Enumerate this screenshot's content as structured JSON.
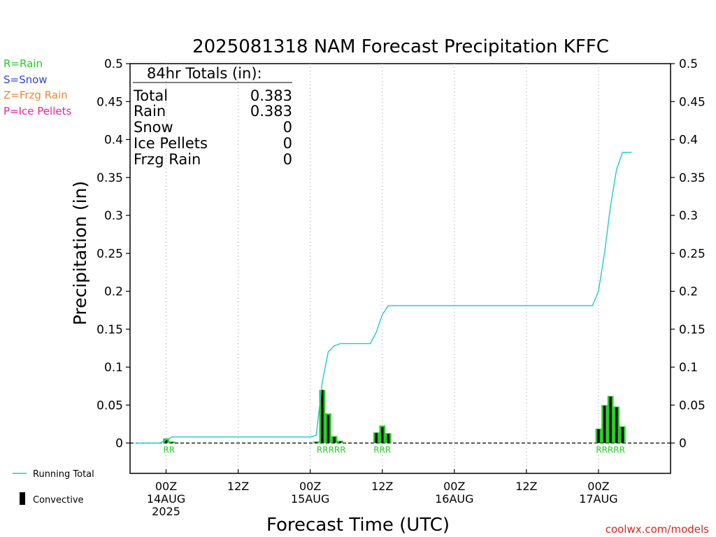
{
  "title": "2025081318 NAM Forecast Precipitation KFFC",
  "legend_types": [
    {
      "label": "R=Rain",
      "color": "#22cc22"
    },
    {
      "label": "S=Snow",
      "color": "#3344ee"
    },
    {
      "label": "Z=Frzg Rain",
      "color": "#ee8833"
    },
    {
      "label": "P=Ice Pellets",
      "color": "#ee2299"
    }
  ],
  "totals": {
    "header": "84hr Totals (in):",
    "rows": [
      {
        "label": "Total",
        "value": "0.383"
      },
      {
        "label": "Rain",
        "value": "0.383"
      },
      {
        "label": "Snow",
        "value": "0"
      },
      {
        "label": "Ice Pellets",
        "value": "0"
      },
      {
        "label": "Frzg Rain",
        "value": "0"
      }
    ]
  },
  "bottom_legend": {
    "running_total": "Running Total",
    "convective": "Convective"
  },
  "credit": "coolwx.com/models",
  "colors": {
    "running_total": "#22c8c8",
    "rain_bar": "#22cc22",
    "convective_bar": "#000000",
    "credit": "#dd2222"
  },
  "chart_data": {
    "type": "bar",
    "title": "2025081318 NAM Forecast Precipitation KFFC",
    "xlabel": "Forecast Time (UTC)",
    "ylabel": "Precipitation (in)",
    "ylim": [
      -0.04,
      0.5
    ],
    "y_ticks": [
      "0.5",
      "0.45",
      "0.4",
      "0.35",
      "0.3",
      "0.25",
      "0.2",
      "0.15",
      "0.1",
      "0.05",
      "0"
    ],
    "x_range_hours": [
      -6,
      84
    ],
    "x_ticks": [
      {
        "hour": 0,
        "lines": [
          "00Z",
          "14AUG",
          "2025"
        ]
      },
      {
        "hour": 12,
        "lines": [
          "12Z"
        ]
      },
      {
        "hour": 24,
        "lines": [
          "00Z",
          "15AUG"
        ]
      },
      {
        "hour": 36,
        "lines": [
          "12Z"
        ]
      },
      {
        "hour": 48,
        "lines": [
          "00Z",
          "16AUG"
        ]
      },
      {
        "hour": 60,
        "lines": [
          "12Z"
        ]
      },
      {
        "hour": 72,
        "lines": [
          "00Z",
          "17AUG"
        ]
      }
    ],
    "bars": [
      {
        "hour": 0,
        "total": 0.006,
        "convective": 0.004
      },
      {
        "hour": 1,
        "total": 0.002,
        "convective": 0.001
      },
      {
        "hour": 25,
        "total": 0.002,
        "convective": 0.001
      },
      {
        "hour": 26,
        "total": 0.07,
        "convective": 0.07
      },
      {
        "hour": 27,
        "total": 0.039,
        "convective": 0.037
      },
      {
        "hour": 28,
        "total": 0.009,
        "convective": 0.008
      },
      {
        "hour": 29,
        "total": 0.003,
        "convective": 0.002
      },
      {
        "hour": 35,
        "total": 0.014,
        "convective": 0.013
      },
      {
        "hour": 36,
        "total": 0.023,
        "convective": 0.021
      },
      {
        "hour": 37,
        "total": 0.013,
        "convective": 0.012
      },
      {
        "hour": 72,
        "total": 0.019,
        "convective": 0.018
      },
      {
        "hour": 73,
        "total": 0.05,
        "convective": 0.049
      },
      {
        "hour": 74,
        "total": 0.062,
        "convective": 0.061
      },
      {
        "hour": 75,
        "total": 0.048,
        "convective": 0.047
      },
      {
        "hour": 76,
        "total": 0.022,
        "convective": 0.021
      }
    ],
    "precip_type_labels": [
      {
        "hour": 0.5,
        "text": "RR"
      },
      {
        "hour": 27.5,
        "text": "RRRRR"
      },
      {
        "hour": 36,
        "text": "RRR"
      },
      {
        "hour": 74,
        "text": "RRRRR"
      }
    ],
    "series": [
      {
        "name": "Running Total",
        "points": [
          [
            -5,
            0
          ],
          [
            -1,
            0
          ],
          [
            0,
            0.004
          ],
          [
            1,
            0.008
          ],
          [
            2,
            0.008
          ],
          [
            24,
            0.008
          ],
          [
            25,
            0.01
          ],
          [
            26,
            0.08
          ],
          [
            27,
            0.12
          ],
          [
            28,
            0.128
          ],
          [
            29,
            0.131
          ],
          [
            30,
            0.131
          ],
          [
            34,
            0.131
          ],
          [
            35,
            0.146
          ],
          [
            36,
            0.169
          ],
          [
            37,
            0.181
          ],
          [
            38,
            0.181
          ],
          [
            71,
            0.181
          ],
          [
            72,
            0.2
          ],
          [
            73,
            0.25
          ],
          [
            74,
            0.312
          ],
          [
            75,
            0.36
          ],
          [
            76,
            0.383
          ],
          [
            77.5,
            0.383
          ]
        ]
      }
    ]
  }
}
